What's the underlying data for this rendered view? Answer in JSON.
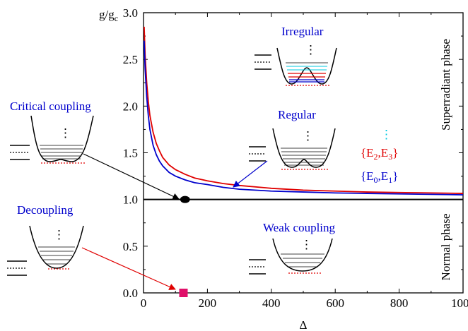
{
  "chart_data": {
    "type": "line",
    "xlabel": "Δ",
    "ylabel_main": "g/g",
    "ylabel_sub": "c",
    "xlim": [
      0,
      1000
    ],
    "ylim": [
      0,
      3.0
    ],
    "xticks": [
      "0",
      "200",
      "400",
      "600",
      "800",
      "1000"
    ],
    "yticks": [
      "0.0",
      "0.5",
      "1.0",
      "1.5",
      "2.0",
      "2.5",
      "3.0"
    ],
    "series": [
      {
        "color": "#e00000",
        "x": [
          2,
          5,
          10,
          15,
          20,
          30,
          40,
          50,
          60,
          80,
          100,
          130,
          160,
          200,
          250,
          300,
          400,
          500,
          600,
          700,
          800,
          900,
          1000
        ],
        "y": [
          2.85,
          2.55,
          2.25,
          2.05,
          1.9,
          1.72,
          1.6,
          1.52,
          1.45,
          1.37,
          1.32,
          1.27,
          1.23,
          1.2,
          1.17,
          1.15,
          1.12,
          1.1,
          1.09,
          1.08,
          1.075,
          1.07,
          1.065
        ]
      },
      {
        "color": "#0000cc",
        "x": [
          2,
          5,
          10,
          15,
          20,
          30,
          40,
          50,
          60,
          80,
          100,
          130,
          160,
          200,
          250,
          300,
          400,
          500,
          600,
          700,
          800,
          900,
          1000
        ],
        "y": [
          2.7,
          2.4,
          2.1,
          1.9,
          1.75,
          1.58,
          1.48,
          1.41,
          1.36,
          1.29,
          1.25,
          1.21,
          1.18,
          1.16,
          1.13,
          1.11,
          1.09,
          1.08,
          1.07,
          1.065,
          1.06,
          1.055,
          1.05
        ]
      },
      {
        "color": "#000000",
        "x": [
          0,
          1000
        ],
        "y": [
          1.0,
          1.0
        ]
      }
    ],
    "markers": [
      {
        "shape": "ellipse",
        "x": 130,
        "y": 1.0,
        "color": "#000000"
      },
      {
        "shape": "square",
        "x": 125,
        "y": 0.0,
        "color": "#e0106a"
      }
    ],
    "phase_labels": {
      "upper": "Superradiant phase",
      "lower": "Normal phase"
    },
    "annotations": {
      "irregular": "Irregular",
      "regular": "Regular",
      "critical": "Critical coupling",
      "decoupling": "Decoupling",
      "weak": "Weak coupling",
      "dots": "⋮",
      "e23_pre": "{E",
      "e23_s1": "2",
      "e23_mid": ",E",
      "e23_s2": "3",
      "e23_post": "}",
      "e01_pre": "{E",
      "e01_s1": "0",
      "e01_mid": ",E",
      "e01_s2": "1",
      "e01_post": "}"
    }
  }
}
